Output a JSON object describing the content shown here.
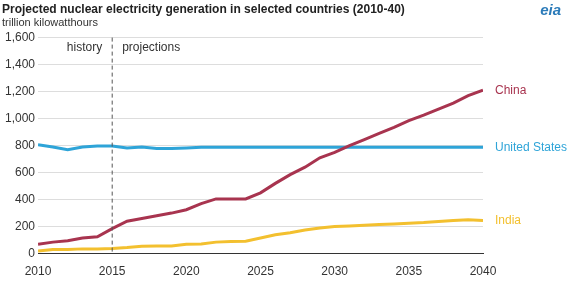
{
  "chart_data": {
    "type": "line",
    "title": "Projected nuclear electricity generation in selected countries (2010-40)",
    "subtitle": "trillion kilowatthours",
    "logo": "eia",
    "annotations": [
      {
        "text": "history"
      },
      {
        "text": "projections"
      }
    ],
    "projection_start": 2015,
    "x": [
      2010,
      2011,
      2012,
      2013,
      2014,
      2015,
      2016,
      2017,
      2018,
      2019,
      2020,
      2021,
      2022,
      2023,
      2024,
      2025,
      2026,
      2027,
      2028,
      2029,
      2030,
      2031,
      2032,
      2033,
      2034,
      2035,
      2036,
      2037,
      2038,
      2039,
      2040
    ],
    "series": [
      {
        "name": "China",
        "color": "#a8344f",
        "values": [
          70,
          85,
          95,
          115,
          125,
          185,
          240,
          260,
          280,
          300,
          325,
          370,
          405,
          405,
          405,
          450,
          520,
          585,
          640,
          710,
          750,
          800,
          845,
          890,
          935,
          985,
          1025,
          1070,
          1115,
          1170,
          1210
        ]
      },
      {
        "name": "United States",
        "color": "#2ea4d8",
        "values": [
          807,
          790,
          770,
          789,
          797,
          797,
          783,
          790,
          778,
          778,
          782,
          787,
          787,
          787,
          787,
          787,
          787,
          787,
          787,
          787,
          787,
          787,
          787,
          787,
          787,
          787,
          787,
          787,
          787,
          787,
          787
        ]
      },
      {
        "name": "India",
        "color": "#f3c02f",
        "values": [
          20,
          30,
          30,
          35,
          35,
          38,
          45,
          55,
          57,
          57,
          70,
          72,
          85,
          90,
          92,
          115,
          140,
          155,
          175,
          190,
          200,
          205,
          210,
          215,
          220,
          225,
          230,
          238,
          245,
          250,
          245
        ]
      }
    ],
    "xlim": [
      2010,
      2040
    ],
    "xticks": [
      2010,
      2015,
      2020,
      2025,
      2030,
      2035,
      2040
    ],
    "ylim": [
      0,
      1600
    ],
    "yticks": [
      0,
      200,
      400,
      600,
      800,
      {
        "value": 1000,
        "label": "1,000"
      },
      {
        "value": 1200,
        "label": "1,200"
      },
      {
        "value": 1400,
        "label": "1,400"
      },
      {
        "value": 1600,
        "label": "1,600"
      }
    ],
    "grid": true
  }
}
